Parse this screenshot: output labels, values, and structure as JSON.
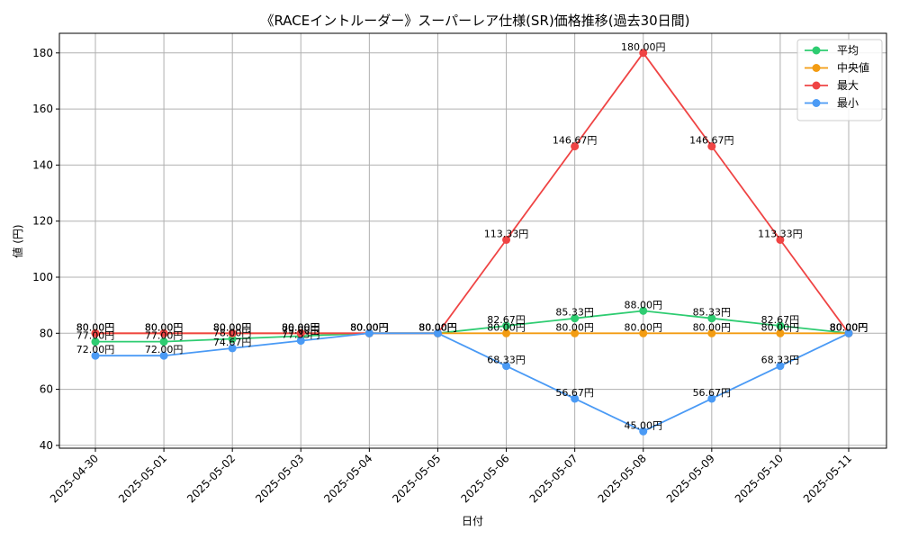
{
  "chart_data": {
    "type": "line",
    "title": "《RACEイントルーダー》スーパーレア仕様(SR)価格推移(過去30日間)",
    "xlabel": "日付",
    "ylabel": "値 (円)",
    "categories": [
      "2025-04-30",
      "2025-05-01",
      "2025-05-02",
      "2025-05-03",
      "2025-05-04",
      "2025-05-05",
      "2025-05-06",
      "2025-05-07",
      "2025-05-08",
      "2025-05-09",
      "2025-05-10",
      "2025-05-11"
    ],
    "yticks": [
      "40",
      "60",
      "80",
      "100",
      "120",
      "140",
      "160",
      "180"
    ],
    "ylim": [
      39,
      187
    ],
    "grid": true,
    "legend_position": "top-right",
    "value_suffix": "円",
    "series": [
      {
        "name": "平均",
        "color": "#2ecc71",
        "values": [
          77.0,
          77.0,
          78.0,
          79.0,
          80.0,
          80.0,
          82.67,
          85.33,
          88.0,
          85.33,
          82.67,
          80.0
        ],
        "labels": [
          "77.00円",
          "77.00円",
          "78.00円",
          "79.00円",
          "80.00円",
          "80.00円",
          "82.67円",
          "85.33円",
          "88.00円",
          "85.33円",
          "82.67円",
          "80.00円"
        ]
      },
      {
        "name": "中央値",
        "color": "#f39c12",
        "values": [
          80.0,
          80.0,
          80.0,
          80.0,
          80.0,
          80.0,
          80.0,
          80.0,
          80.0,
          80.0,
          80.0,
          80.0
        ],
        "labels": [
          "80.00円",
          "80.00円",
          "80.00円",
          "80.00円",
          "80.00円",
          "80.00円",
          "80.00円",
          "80.00円",
          "80.00円",
          "80.00円",
          "80.00円",
          "80.00円"
        ]
      },
      {
        "name": "最大",
        "color": "#ef4444",
        "values": [
          80.0,
          80.0,
          80.0,
          80.0,
          80.0,
          80.0,
          113.33,
          146.67,
          180.0,
          146.67,
          113.33,
          80.0
        ],
        "labels": [
          "80.00円",
          "80.00円",
          "80.00円",
          "80.00円",
          "80.00円",
          "80.00円",
          "113.33円",
          "146.67円",
          "180.00円",
          "146.67円",
          "113.33円",
          "80.00円"
        ]
      },
      {
        "name": "最小",
        "color": "#4a9af5",
        "values": [
          72.0,
          72.0,
          74.67,
          77.33,
          80.0,
          80.0,
          68.33,
          56.67,
          45.0,
          56.67,
          68.33,
          80.0
        ],
        "labels": [
          "72.00円",
          "72.00円",
          "74.67円",
          "77.33円",
          "80.00円",
          "80.00円",
          "68.33円",
          "56.67円",
          "45.00円",
          "56.67円",
          "68.33円",
          "80.00円"
        ]
      }
    ]
  }
}
